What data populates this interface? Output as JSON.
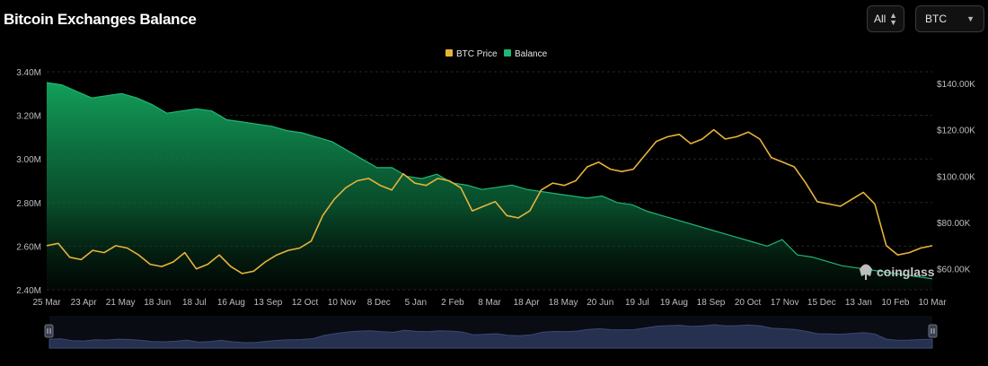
{
  "page_title": "Bitcoin Exchanges Balance",
  "controls": {
    "range_label": "All",
    "coin_label": "BTC"
  },
  "brand": "coinglass",
  "colors": {
    "background": "#000000",
    "btc_price": "#e8b339",
    "balance": "#1fb774",
    "balance_fill_top": "#13a85f",
    "navigator_fill": "#26304f",
    "grid": "#262626"
  },
  "chart_data": {
    "type": "line",
    "title": "Bitcoin Exchanges Balance",
    "legend": {
      "placement": "top-center",
      "entries": [
        "BTC Price",
        "Balance"
      ]
    },
    "x_ticks": [
      "25 Mar",
      "23 Apr",
      "21 May",
      "18 Jun",
      "18 Jul",
      "16 Aug",
      "13 Sep",
      "12 Oct",
      "10 Nov",
      "8 Dec",
      "5 Jan",
      "2 Feb",
      "8 Mar",
      "18 Apr",
      "18 May",
      "20 Jun",
      "19 Jul",
      "19 Aug",
      "18 Sep",
      "20 Oct",
      "17 Nov",
      "15 Dec",
      "13 Jan",
      "10 Feb",
      "10 Mar"
    ],
    "y_left": {
      "ticks": [
        "2.40M",
        "2.60M",
        "2.80M",
        "3.00M",
        "3.20M",
        "3.40M"
      ],
      "range": [
        2.4,
        3.4
      ],
      "unit": "M"
    },
    "y_right": {
      "ticks": [
        "$60.00K",
        "$80.00K",
        "$100.00K",
        "$120.00K",
        "$140.00K"
      ],
      "range": [
        51,
        145
      ],
      "unit": "K"
    },
    "grid": true,
    "series": [
      {
        "name": "Balance",
        "axis": "left",
        "style": "area",
        "color": "#1fb774",
        "values": [
          3.35,
          3.34,
          3.31,
          3.28,
          3.29,
          3.3,
          3.28,
          3.25,
          3.21,
          3.22,
          3.23,
          3.22,
          3.18,
          3.17,
          3.16,
          3.15,
          3.13,
          3.12,
          3.1,
          3.08,
          3.04,
          3.0,
          2.96,
          2.96,
          2.92,
          2.91,
          2.93,
          2.89,
          2.88,
          2.86,
          2.87,
          2.88,
          2.86,
          2.85,
          2.84,
          2.83,
          2.82,
          2.83,
          2.8,
          2.79,
          2.76,
          2.74,
          2.72,
          2.7,
          2.68,
          2.66,
          2.64,
          2.62,
          2.6,
          2.63,
          2.56,
          2.55,
          2.53,
          2.51,
          2.5,
          2.49,
          2.48,
          2.47,
          2.46,
          2.45
        ]
      },
      {
        "name": "BTC Price",
        "axis": "right",
        "style": "line",
        "color": "#e8b339",
        "values": [
          70,
          71,
          65,
          64,
          68,
          67,
          70,
          69,
          66,
          62,
          61,
          63,
          67,
          60,
          62,
          66,
          61,
          58,
          59,
          63,
          66,
          68,
          69,
          72,
          83,
          90,
          95,
          98,
          99,
          96,
          94,
          101,
          97,
          96,
          99,
          98,
          95,
          85,
          87,
          89,
          83,
          82,
          85,
          94,
          97,
          96,
          98,
          104,
          106,
          103,
          102,
          103,
          109,
          115,
          117,
          118,
          114,
          116,
          120,
          116,
          117,
          119,
          116,
          108,
          106,
          104,
          97,
          89,
          88,
          87,
          90,
          93,
          88,
          70,
          66,
          67,
          69,
          70
        ]
      }
    ]
  }
}
